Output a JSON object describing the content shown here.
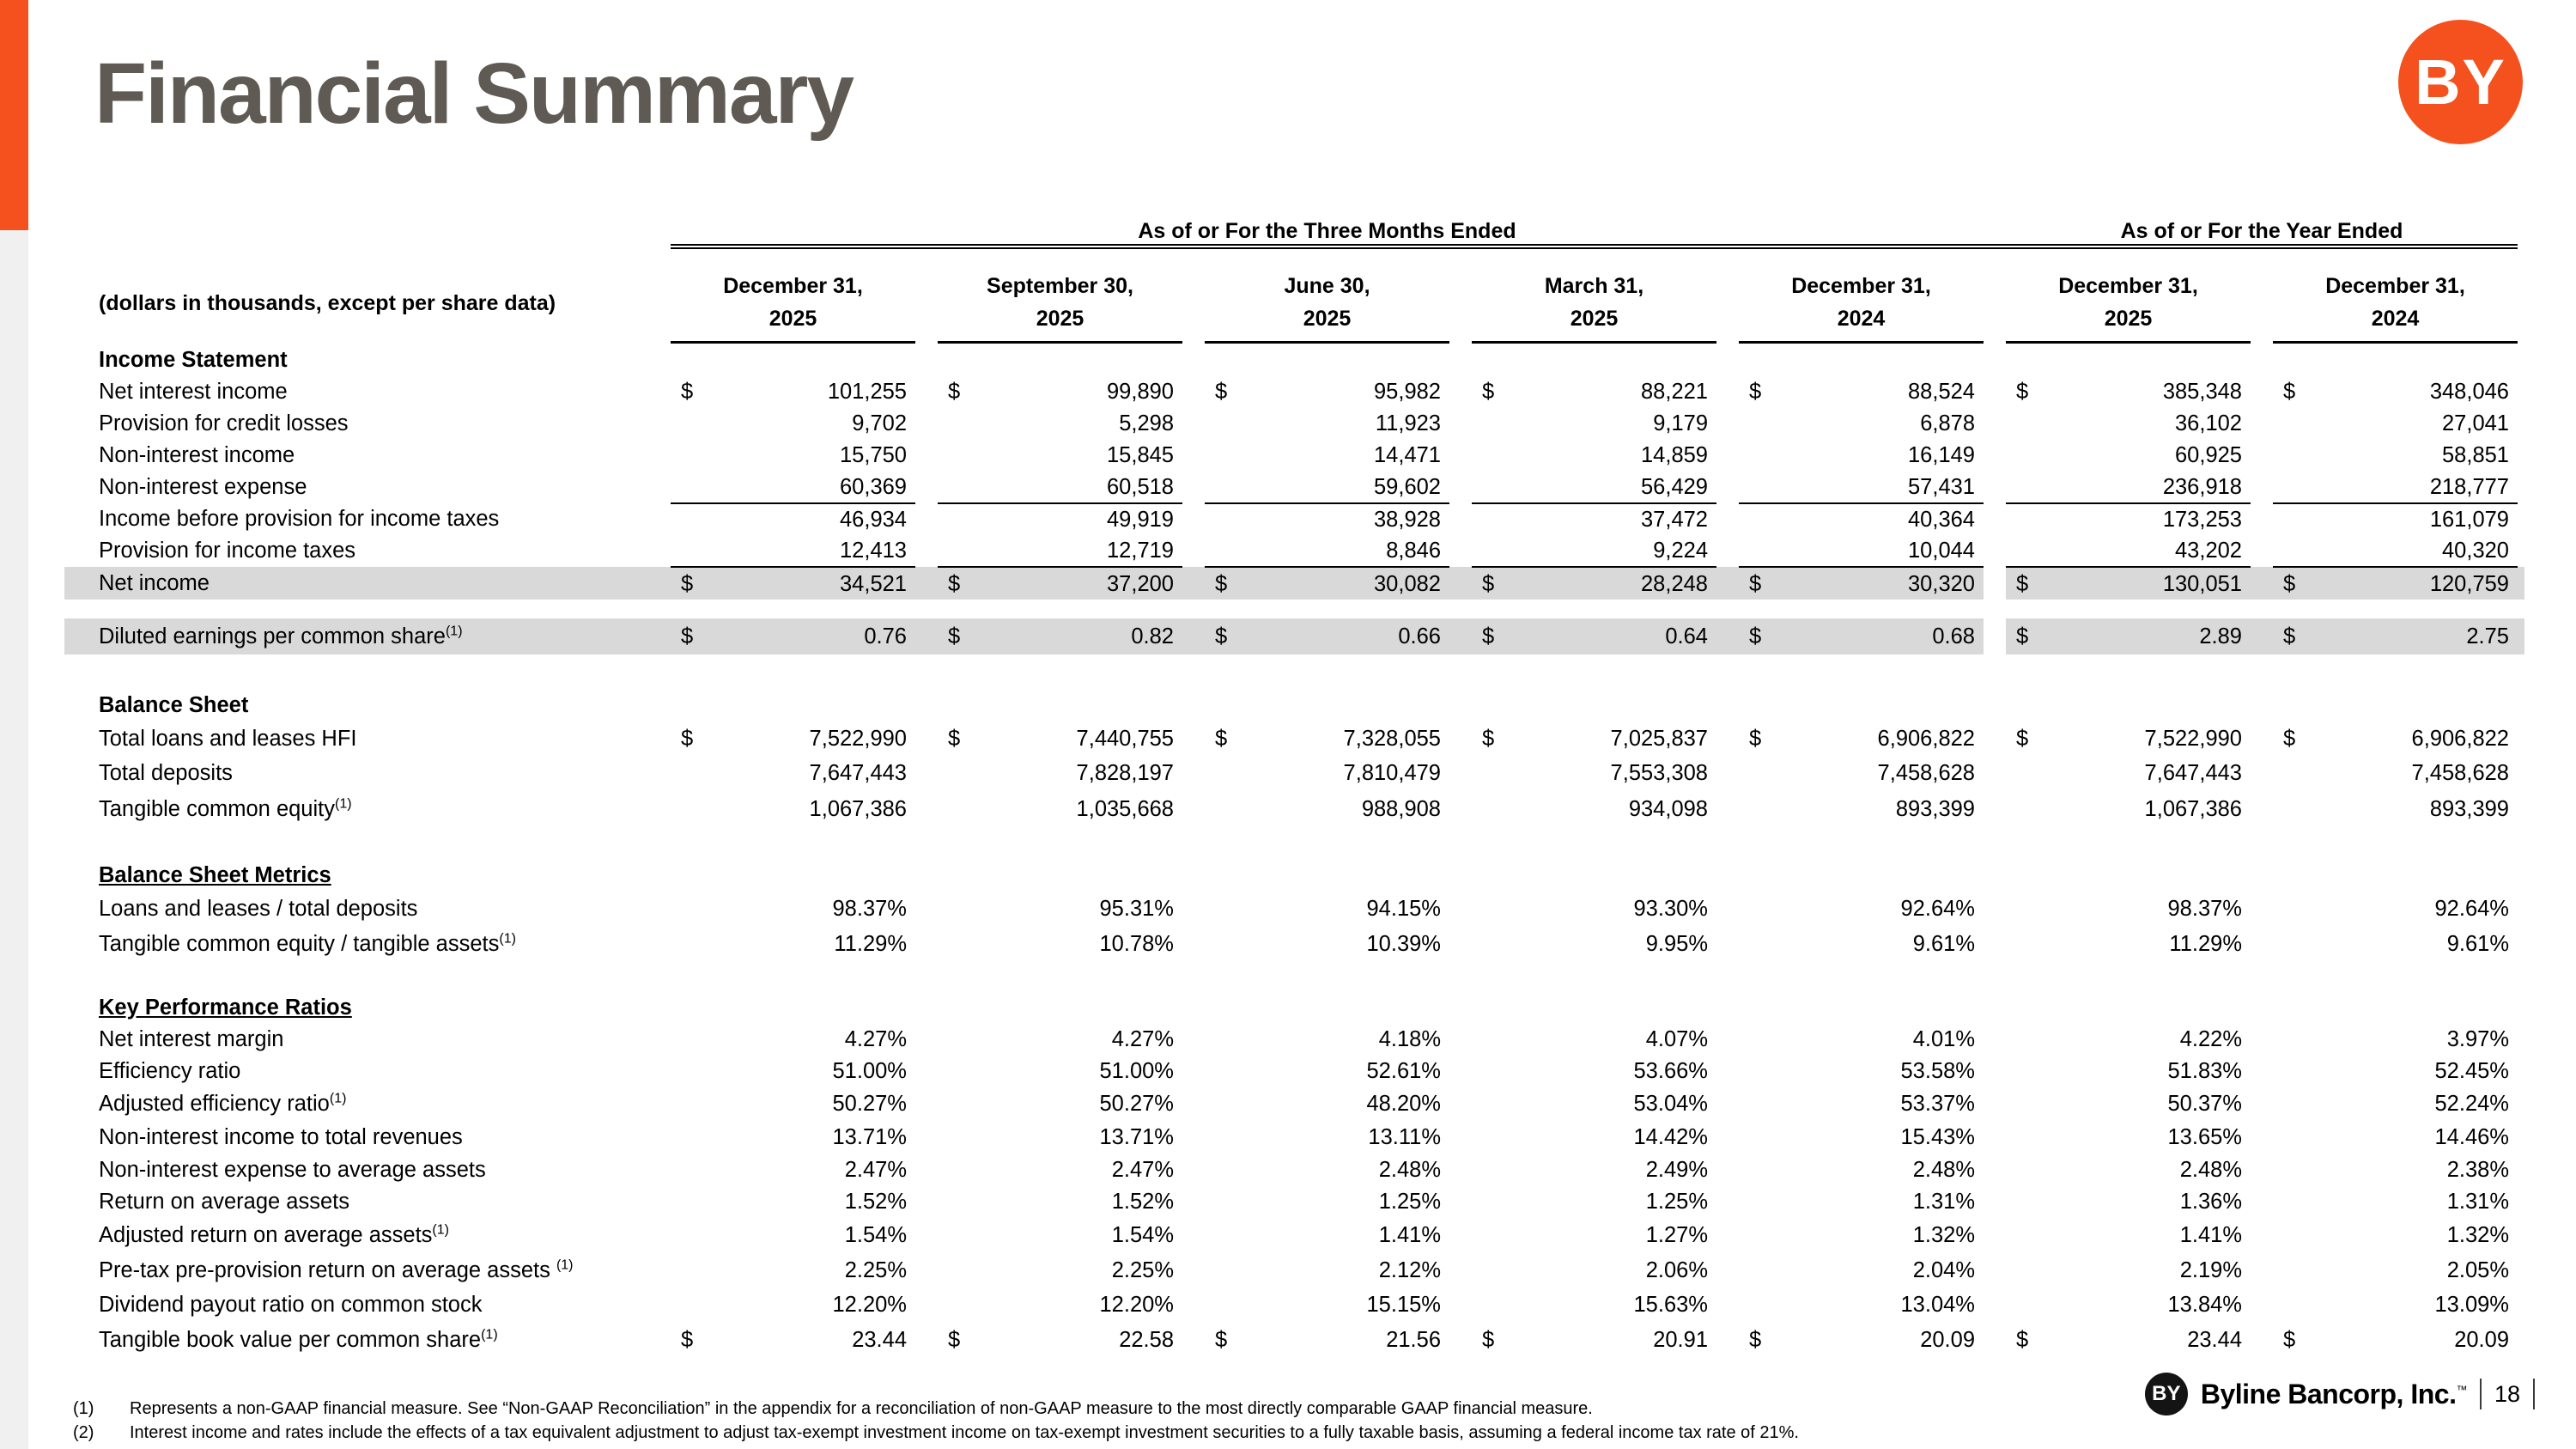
{
  "page": {
    "title": "Financial Summary",
    "company": "Byline Bancorp, Inc.",
    "trademark": "™",
    "logo_text": "BY",
    "page_number": "18",
    "colors": {
      "accent_orange": "#F4511E",
      "title_gray": "#5F5A53",
      "row_highlight": "#D9D9D9",
      "left_strip_gray": "#F0F0F1"
    }
  },
  "table": {
    "units_note": "(dollars in thousands, except per share data)",
    "group_headers": [
      {
        "label": "As of or For the Three Months Ended",
        "span": 5
      },
      {
        "label": "As of or For the Year Ended",
        "span": 2
      }
    ],
    "columns": [
      {
        "line1": "December 31,",
        "line2": "2025"
      },
      {
        "line1": "September 30,",
        "line2": "2025"
      },
      {
        "line1": "June 30,",
        "line2": "2025"
      },
      {
        "line1": "March 31,",
        "line2": "2025"
      },
      {
        "line1": "December 31,",
        "line2": "2024"
      },
      {
        "line1": "December 31,",
        "line2": "2025"
      },
      {
        "line1": "December 31,",
        "line2": "2024"
      }
    ],
    "rows": [
      {
        "type": "section",
        "label": "Income Statement",
        "h": 38
      },
      {
        "type": "data",
        "label": "Net interest income",
        "dollar": true,
        "h": 37,
        "values": [
          "101,255",
          "99,890",
          "95,982",
          "88,221",
          "88,524",
          "385,348",
          "348,046"
        ]
      },
      {
        "type": "data",
        "label": "Provision for credit losses",
        "h": 37,
        "values": [
          "9,702",
          "5,298",
          "11,923",
          "9,179",
          "6,878",
          "36,102",
          "27,041"
        ]
      },
      {
        "type": "data",
        "label": "Non-interest income",
        "h": 37,
        "values": [
          "15,750",
          "15,845",
          "14,471",
          "14,859",
          "16,149",
          "60,925",
          "58,851"
        ]
      },
      {
        "type": "data",
        "label": "Non-interest expense",
        "h": 37,
        "values": [
          "60,369",
          "60,518",
          "59,602",
          "56,429",
          "57,431",
          "236,918",
          "218,777"
        ]
      },
      {
        "type": "data",
        "label": "Income before provision for income taxes",
        "topline": true,
        "h": 37,
        "values": [
          "46,934",
          "49,919",
          "38,928",
          "37,472",
          "40,364",
          "173,253",
          "161,079"
        ]
      },
      {
        "type": "data",
        "label": "Provision for income taxes",
        "h": 37,
        "values": [
          "12,413",
          "12,719",
          "8,846",
          "9,224",
          "10,044",
          "43,202",
          "40,320"
        ]
      },
      {
        "type": "data",
        "label": "Net income",
        "dollar": true,
        "highlight": true,
        "topline": true,
        "h": 38,
        "values": [
          "34,521",
          "37,200",
          "30,082",
          "28,248",
          "30,320",
          "130,051",
          "120,759"
        ]
      },
      {
        "type": "spacer",
        "h": 22
      },
      {
        "type": "data",
        "label": "Diluted earnings per common share",
        "sup": "(1)",
        "dollar": true,
        "highlight": true,
        "h": 42,
        "values": [
          "0.76",
          "0.82",
          "0.66",
          "0.64",
          "0.68",
          "2.89",
          "2.75"
        ]
      },
      {
        "type": "spacer",
        "h": 40
      },
      {
        "type": "section",
        "label": "Balance Sheet",
        "h": 38
      },
      {
        "type": "data",
        "label": "Total loans and leases HFI",
        "dollar": true,
        "h": 40,
        "values": [
          "7,522,990",
          "7,440,755",
          "7,328,055",
          "7,025,837",
          "6,906,822",
          "7,522,990",
          "6,906,822"
        ]
      },
      {
        "type": "data",
        "label": "Total deposits",
        "h": 40,
        "values": [
          "7,647,443",
          "7,828,197",
          "7,810,479",
          "7,553,308",
          "7,458,628",
          "7,647,443",
          "7,458,628"
        ]
      },
      {
        "type": "data",
        "label": "Tangible common equity",
        "sup": "(1)",
        "h": 44,
        "values": [
          "1,067,386",
          "1,035,668",
          "988,908",
          "934,098",
          "893,399",
          "1,067,386",
          "893,399"
        ]
      },
      {
        "type": "spacer",
        "h": 36
      },
      {
        "type": "section",
        "label": "Balance Sheet Metrics",
        "underline": true,
        "h": 38
      },
      {
        "type": "data",
        "label": "Loans and leases / total deposits",
        "h": 40,
        "values": [
          "98.37%",
          "95.31%",
          "94.15%",
          "93.30%",
          "92.64%",
          "98.37%",
          "92.64%"
        ]
      },
      {
        "type": "data",
        "label": "Tangible common equity / tangible assets",
        "sup": "(1)",
        "h": 42,
        "values": [
          "11.29%",
          "10.78%",
          "10.39%",
          "9.95%",
          "9.61%",
          "11.29%",
          "9.61%"
        ]
      },
      {
        "type": "spacer",
        "h": 34
      },
      {
        "type": "section",
        "label": "Key Performance Ratios",
        "underline": true,
        "h": 38
      },
      {
        "type": "data",
        "label": "Net interest margin",
        "h": 37,
        "values": [
          "4.27%",
          "4.27%",
          "4.18%",
          "4.07%",
          "4.01%",
          "4.22%",
          "3.97%"
        ]
      },
      {
        "type": "data",
        "label": "Efficiency ratio",
        "h": 37,
        "values": [
          "51.00%",
          "51.00%",
          "52.61%",
          "53.66%",
          "53.58%",
          "51.83%",
          "52.45%"
        ]
      },
      {
        "type": "data",
        "label": "Adjusted efficiency ratio",
        "sup": "(1)",
        "h": 39,
        "values": [
          "50.27%",
          "50.27%",
          "48.20%",
          "53.04%",
          "53.37%",
          "50.37%",
          "52.24%"
        ]
      },
      {
        "type": "data",
        "label": "Non-interest income to total revenues",
        "h": 39,
        "values": [
          "13.71%",
          "13.71%",
          "13.11%",
          "14.42%",
          "15.43%",
          "13.65%",
          "14.46%"
        ]
      },
      {
        "type": "data",
        "label": "Non-interest expense to average assets",
        "h": 37,
        "values": [
          "2.47%",
          "2.47%",
          "2.48%",
          "2.49%",
          "2.48%",
          "2.48%",
          "2.38%"
        ]
      },
      {
        "type": "data",
        "label": "Return on average assets",
        "h": 37,
        "values": [
          "1.52%",
          "1.52%",
          "1.25%",
          "1.25%",
          "1.31%",
          "1.36%",
          "1.31%"
        ]
      },
      {
        "type": "data",
        "label": "Adjusted return on average assets",
        "sup": "(1)",
        "h": 40,
        "values": [
          "1.54%",
          "1.54%",
          "1.41%",
          "1.27%",
          "1.32%",
          "1.41%",
          "1.32%"
        ]
      },
      {
        "type": "data",
        "label": "Pre-tax pre-provision return on average assets ",
        "sup": "(1)",
        "h": 42,
        "values": [
          "2.25%",
          "2.25%",
          "2.12%",
          "2.06%",
          "2.04%",
          "2.19%",
          "2.05%"
        ]
      },
      {
        "type": "data",
        "label": "Dividend payout ratio on common stock",
        "h": 39,
        "values": [
          "12.20%",
          "12.20%",
          "15.15%",
          "15.63%",
          "13.04%",
          "13.84%",
          "13.09%"
        ]
      },
      {
        "type": "data",
        "label": "Tangible book value per common share",
        "sup": "(1)",
        "dollar": true,
        "h": 42,
        "values": [
          "23.44",
          "22.58",
          "21.56",
          "20.91",
          "20.09",
          "23.44",
          "20.09"
        ]
      }
    ]
  },
  "footnotes": [
    {
      "marker": "(1)",
      "text": "Represents a non-GAAP financial measure.  See “Non-GAAP Reconciliation” in the appendix for a reconciliation of non-GAAP measure to the most directly comparable GAAP financial measure."
    },
    {
      "marker": "(2)",
      "text": "Interest income and rates include the effects of a tax equivalent adjustment to adjust tax-exempt investment income on tax-exempt investment securities to a fully taxable basis, assuming a federal income tax rate of 21%."
    }
  ]
}
